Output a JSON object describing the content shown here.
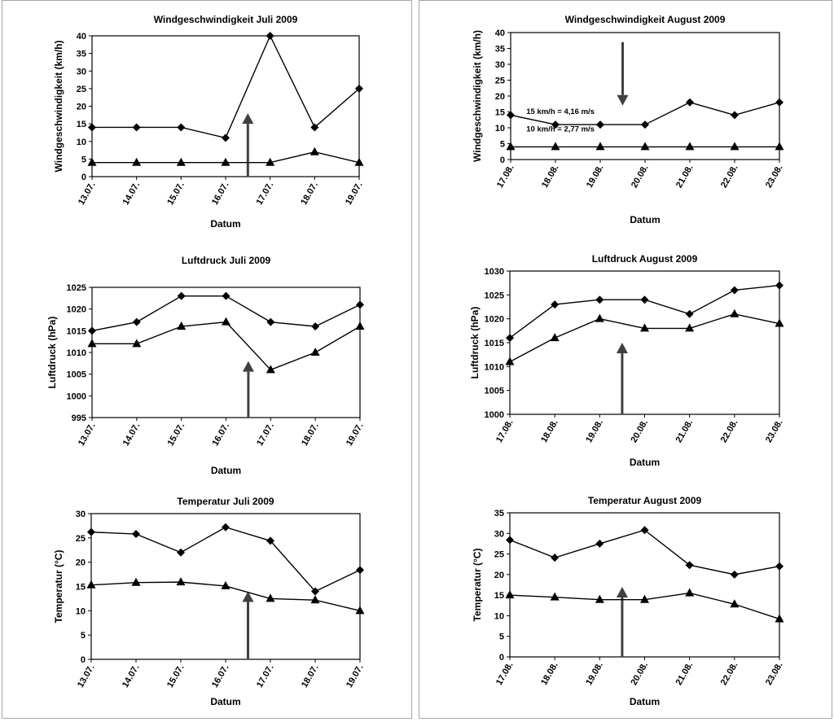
{
  "chart_data": [
    {
      "type": "line",
      "title": "Windgeschwindigkeit Juli 2009",
      "xlabel": "Datum",
      "ylabel": "Windgeschwindigkeit (km/h)",
      "categories": [
        "13.07.",
        "14.07.",
        "15.07.",
        "16.07.",
        "17.07.",
        "18.07.",
        "19.07."
      ],
      "ylim": [
        0,
        40
      ],
      "yticks": [
        0,
        5,
        10,
        15,
        20,
        25,
        30,
        35,
        40
      ],
      "series": [
        {
          "marker": "diamond",
          "values": [
            14,
            14,
            14,
            11,
            40,
            14,
            25
          ]
        },
        {
          "marker": "triangle",
          "values": [
            4,
            4,
            4,
            4,
            4,
            7,
            4
          ]
        }
      ],
      "arrow": {
        "x_index": 3.5,
        "direction": "up",
        "from": 0,
        "to": 18
      }
    },
    {
      "type": "line",
      "title": "Windgeschwindigkeit August 2009",
      "xlabel": "Datum",
      "ylabel": "Windgeschwindigkeit (km/h)",
      "categories": [
        "17.08.",
        "18.08.",
        "19.08.",
        "20.08.",
        "21.08.",
        "22.08.",
        "23.08."
      ],
      "ylim": [
        0,
        40
      ],
      "yticks": [
        0,
        5,
        10,
        15,
        20,
        25,
        30,
        35,
        40
      ],
      "series": [
        {
          "marker": "diamond",
          "values": [
            14,
            11,
            11,
            11,
            18,
            14,
            18
          ]
        },
        {
          "marker": "triangle",
          "values": [
            4,
            4,
            4,
            4,
            4,
            4,
            4
          ]
        }
      ],
      "arrow": {
        "x_index": 2.5,
        "direction": "down",
        "from": 37,
        "to": 17
      },
      "annotations": [
        {
          "text": "15 km/h = 4,16 m/s",
          "x_index": 0.35,
          "y": 14.3
        },
        {
          "text": "10 km/h = 2,77 m/s",
          "x_index": 0.35,
          "y": 8.8
        }
      ]
    },
    {
      "type": "line",
      "title": "Luftdruck Juli 2009",
      "xlabel": "Datum",
      "ylabel": "Luftdruck (hPa)",
      "categories": [
        "13.07.",
        "14.07.",
        "15.07.",
        "16.07.",
        "17.07.",
        "18.07.",
        "19.07."
      ],
      "ylim": [
        995,
        1025
      ],
      "yticks": [
        995,
        1000,
        1005,
        1010,
        1015,
        1020,
        1025
      ],
      "series": [
        {
          "marker": "diamond",
          "values": [
            1015,
            1017,
            1023,
            1023,
            1017,
            1016,
            1021
          ]
        },
        {
          "marker": "triangle",
          "values": [
            1012,
            1012,
            1016,
            1017,
            1006,
            1010,
            1016
          ]
        }
      ],
      "arrow": {
        "x_index": 3.5,
        "direction": "up",
        "from": 995,
        "to": 1008
      }
    },
    {
      "type": "line",
      "title": "Luftdruck August 2009",
      "xlabel": "Datum",
      "ylabel": "Luftdruck (hPa)",
      "categories": [
        "17.08.",
        "18.08.",
        "19.08.",
        "20.08.",
        "21.08.",
        "22.08.",
        "23.08."
      ],
      "ylim": [
        1000,
        1030
      ],
      "yticks": [
        1000,
        1005,
        1010,
        1015,
        1020,
        1025,
        1030
      ],
      "series": [
        {
          "marker": "diamond",
          "values": [
            1016,
            1023,
            1024,
            1024,
            1021,
            1026,
            1027
          ]
        },
        {
          "marker": "triangle",
          "values": [
            1011,
            1016,
            1020,
            1018,
            1018,
            1021,
            1019
          ]
        }
      ],
      "arrow": {
        "x_index": 2.5,
        "direction": "up",
        "from": 1000,
        "to": 1015
      }
    },
    {
      "type": "line",
      "title": "Temperatur  Juli 2009",
      "xlabel": "Datum",
      "ylabel": "Temperatur (°C)",
      "categories": [
        "13.07.",
        "14.07.",
        "15.07.",
        "16.07.",
        "17.07.",
        "18.07.",
        "19.07."
      ],
      "ylim": [
        0,
        30
      ],
      "yticks": [
        0,
        5,
        10,
        15,
        20,
        25,
        30
      ],
      "series": [
        {
          "marker": "diamond",
          "values": [
            26.2,
            25.8,
            22,
            27.2,
            24.4,
            14,
            18.4
          ]
        },
        {
          "marker": "triangle",
          "values": [
            15.3,
            15.8,
            15.9,
            15.1,
            12.5,
            12.2,
            10
          ]
        }
      ],
      "arrow": {
        "x_index": 3.5,
        "direction": "up",
        "from": 0,
        "to": 14
      }
    },
    {
      "type": "line",
      "title": "Temperatur August 2009",
      "xlabel": "Datum",
      "ylabel": "Temperatur (°C)",
      "categories": [
        "17.08.",
        "18.08.",
        "19.08.",
        "20.08.",
        "21.08.",
        "22.08.",
        "23.08."
      ],
      "ylim": [
        0,
        35
      ],
      "yticks": [
        0,
        5,
        10,
        15,
        20,
        25,
        30,
        35
      ],
      "series": [
        {
          "marker": "diamond",
          "values": [
            28.4,
            24.1,
            27.5,
            30.8,
            22.3,
            20,
            22
          ]
        },
        {
          "marker": "triangle",
          "values": [
            15,
            14.5,
            13.9,
            13.9,
            15.5,
            12.8,
            9.2
          ]
        }
      ],
      "arrow": {
        "x_index": 2.5,
        "direction": "up",
        "from": 0,
        "to": 17
      }
    }
  ]
}
